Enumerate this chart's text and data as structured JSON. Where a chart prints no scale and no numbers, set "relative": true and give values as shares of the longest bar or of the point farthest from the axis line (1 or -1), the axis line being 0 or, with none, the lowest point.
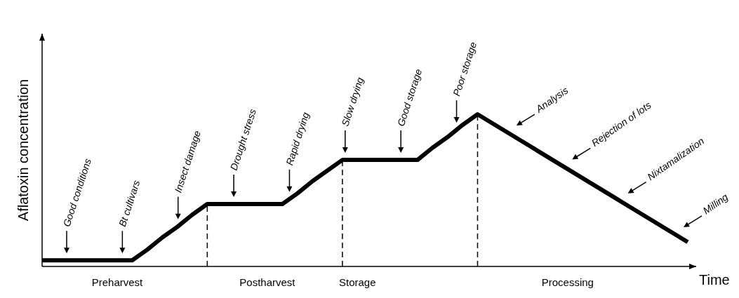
{
  "chart_data": {
    "type": "line",
    "relative": true,
    "xlabel": "Time",
    "ylabel": "Aflatoxin concentration",
    "categories": [
      null,
      null,
      null,
      null,
      null,
      "Preharvest",
      null,
      null,
      null,
      null,
      null,
      null,
      null,
      null,
      null,
      "Postharvest",
      null,
      null,
      null,
      null,
      null,
      "Storage",
      null,
      null,
      null,
      null,
      null,
      null,
      null,
      null,
      null,
      null,
      null,
      null,
      null,
      "Processing",
      null,
      null,
      null,
      null,
      null,
      null,
      null,
      null
    ],
    "series": [
      {
        "color": "#000000",
        "values": [
          0.04,
          0.04,
          0.04,
          0.04,
          0.04,
          0.04,
          0.04,
          0.11,
          0.19,
          0.26,
          0.34,
          0.41,
          0.41,
          0.41,
          0.41,
          0.41,
          0.41,
          0.48,
          0.56,
          0.63,
          0.7,
          0.7,
          0.7,
          0.7,
          0.7,
          0.7,
          0.78,
          0.85,
          0.93,
          1,
          0.94,
          0.88,
          0.82,
          0.76,
          0.7,
          0.64,
          0.58,
          0.52,
          0.46,
          0.4,
          0.34,
          0.28,
          0.22,
          0.16
        ]
      }
    ],
    "annotations": [
      "Good conditions",
      "Bt cultivars",
      "Insect damage",
      "Drought stress",
      "Rapid drying",
      "Slow drying",
      "Good storage",
      "Poor storage",
      "Analysis",
      "Rejection of lots",
      "Nixtamalization",
      "Milling"
    ],
    "line_style": "solid",
    "marker": "none"
  }
}
